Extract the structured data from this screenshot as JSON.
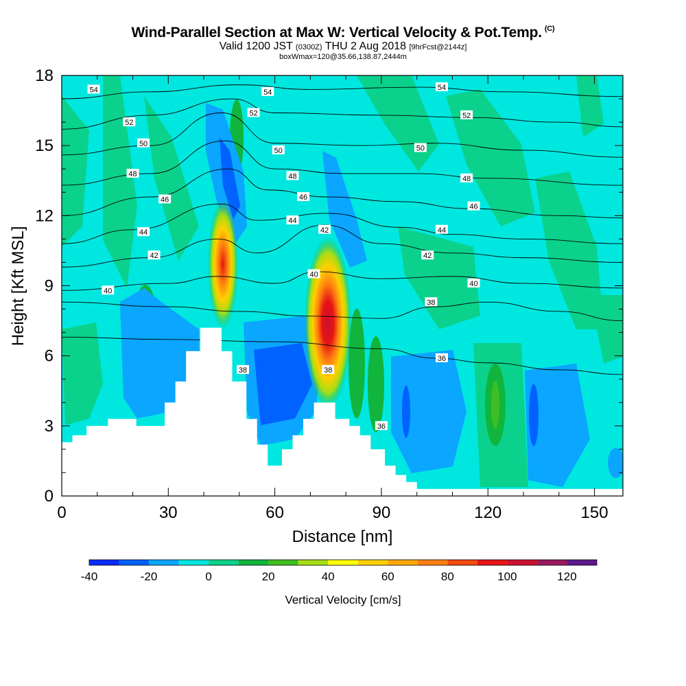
{
  "chart_data": {
    "type": "heatmap",
    "title": "Wind-Parallel Section at Max W: Vertical Velocity & Pot.Temp.",
    "title_mark": "(C)",
    "subtitle_main": "Valid 1200 JST",
    "subtitle_utc": "(0300Z)",
    "subtitle_date": "THU 2 Aug 2018",
    "subtitle_fcst": "[9hrFcst@2144z]",
    "subtitle2": "boxWmax=120@35.66,138.87,2444m",
    "xlabel": "Distance [nm]",
    "ylabel": "Height [Kft MSL]",
    "xlim": [
      0,
      158
    ],
    "ylim": [
      0,
      18
    ],
    "x_ticks": [
      "0",
      "30",
      "60",
      "90",
      "120",
      "150"
    ],
    "y_ticks": [
      "0",
      "3",
      "6",
      "9",
      "12",
      "15",
      "18"
    ],
    "colorbar": {
      "label": "Vertical Velocity [cm/s]",
      "range": [
        -40,
        130
      ],
      "step": 10,
      "tick_labels": [
        "-40",
        "-20",
        "0",
        "20",
        "40",
        "60",
        "80",
        "100",
        "120"
      ],
      "colors": [
        "#0a2cff",
        "#0062ff",
        "#0aa6ff",
        "#00e7e0",
        "#0ad28c",
        "#11b53e",
        "#3fbf1f",
        "#a6dd14",
        "#ffff00",
        "#ffd000",
        "#ffa800",
        "#ff7f10",
        "#f54a10",
        "#e61414",
        "#cc1030",
        "#991a5e",
        "#5e1a8c"
      ]
    },
    "terrain": [
      [
        0,
        2.3
      ],
      [
        3,
        2.6
      ],
      [
        7,
        3.0
      ],
      [
        13,
        3.3
      ],
      [
        21,
        3.0
      ],
      [
        29,
        4.0
      ],
      [
        32,
        4.9
      ],
      [
        35,
        6.2
      ],
      [
        39,
        7.2
      ],
      [
        45,
        6.2
      ],
      [
        48,
        4.9
      ],
      [
        52,
        3.3
      ],
      [
        55,
        2.2
      ],
      [
        58,
        1.3
      ],
      [
        62,
        2.0
      ],
      [
        65,
        2.6
      ],
      [
        68,
        3.3
      ],
      [
        71,
        4.0
      ],
      [
        77,
        3.3
      ],
      [
        81,
        3.0
      ],
      [
        84,
        2.6
      ],
      [
        87,
        2.0
      ],
      [
        91,
        1.3
      ],
      [
        94,
        0.9
      ],
      [
        97,
        0.6
      ],
      [
        100,
        0.3
      ],
      [
        158,
        0.3
      ]
    ],
    "theta_contours": [
      {
        "level": 36,
        "label": "36",
        "points": [
          [
            0,
            6.8
          ],
          [
            30,
            6.7
          ],
          [
            60,
            6.6
          ],
          [
            90,
            6.3
          ],
          [
            105,
            5.9
          ],
          [
            120,
            5.7
          ],
          [
            140,
            5.4
          ],
          [
            158,
            5.2
          ]
        ]
      },
      {
        "level": 38,
        "label": "38",
        "points": [
          [
            0,
            8.3
          ],
          [
            30,
            8.1
          ],
          [
            50,
            7.9
          ],
          [
            70,
            7.7
          ],
          [
            90,
            7.6
          ],
          [
            105,
            8.1
          ],
          [
            120,
            8.3
          ],
          [
            140,
            7.9
          ],
          [
            158,
            7.5
          ]
        ]
      },
      {
        "level": 40,
        "label": "40",
        "points": [
          [
            0,
            8.8
          ],
          [
            30,
            9.1
          ],
          [
            44,
            9.4
          ],
          [
            60,
            9.1
          ],
          [
            72,
            9.6
          ],
          [
            90,
            9.3
          ],
          [
            110,
            9.4
          ],
          [
            130,
            9.1
          ],
          [
            158,
            8.9
          ]
        ]
      },
      {
        "level": 42,
        "label": "42",
        "points": [
          [
            0,
            9.8
          ],
          [
            25,
            10.2
          ],
          [
            44,
            11.0
          ],
          [
            55,
            10.4
          ],
          [
            74,
            11.6
          ],
          [
            90,
            10.8
          ],
          [
            110,
            10.4
          ],
          [
            130,
            10.2
          ],
          [
            158,
            10.0
          ]
        ]
      },
      {
        "level": 44,
        "label": "44",
        "points": [
          [
            0,
            10.8
          ],
          [
            20,
            11.4
          ],
          [
            45,
            12.5
          ],
          [
            55,
            11.8
          ],
          [
            75,
            12.1
          ],
          [
            95,
            11.5
          ],
          [
            110,
            11.2
          ],
          [
            130,
            11.0
          ],
          [
            158,
            10.8
          ]
        ]
      },
      {
        "level": 46,
        "label": "46",
        "points": [
          [
            0,
            12.0
          ],
          [
            25,
            12.8
          ],
          [
            47,
            14.0
          ],
          [
            58,
            13.1
          ],
          [
            75,
            12.8
          ],
          [
            95,
            12.6
          ],
          [
            115,
            12.3
          ],
          [
            140,
            12.0
          ],
          [
            158,
            11.9
          ]
        ]
      },
      {
        "level": 48,
        "label": "48",
        "points": [
          [
            0,
            13.3
          ],
          [
            25,
            13.8
          ],
          [
            46,
            15.2
          ],
          [
            60,
            14.0
          ],
          [
            80,
            13.8
          ],
          [
            100,
            13.8
          ],
          [
            120,
            13.6
          ],
          [
            158,
            13.3
          ]
        ]
      },
      {
        "level": 50,
        "label": "50",
        "points": [
          [
            0,
            14.6
          ],
          [
            25,
            15.0
          ],
          [
            45,
            16.4
          ],
          [
            60,
            15.1
          ],
          [
            85,
            15.0
          ],
          [
            105,
            15.1
          ],
          [
            130,
            14.8
          ],
          [
            158,
            14.5
          ]
        ]
      },
      {
        "level": 52,
        "label": "52",
        "points": [
          [
            0,
            15.7
          ],
          [
            25,
            16.3
          ],
          [
            48,
            17.0
          ],
          [
            60,
            16.4
          ],
          [
            90,
            16.3
          ],
          [
            115,
            16.2
          ],
          [
            140,
            16.0
          ],
          [
            158,
            15.8
          ]
        ]
      },
      {
        "level": 54,
        "label": "54",
        "points": [
          [
            0,
            17.0
          ],
          [
            25,
            17.3
          ],
          [
            50,
            17.6
          ],
          [
            70,
            17.4
          ],
          [
            100,
            17.5
          ],
          [
            125,
            17.3
          ],
          [
            158,
            17.1
          ]
        ]
      }
    ],
    "contour_labels": [
      {
        "text": "54",
        "x": 9,
        "y": 17.4
      },
      {
        "text": "54",
        "x": 58,
        "y": 17.3
      },
      {
        "text": "54",
        "x": 107,
        "y": 17.5
      },
      {
        "text": "52",
        "x": 19,
        "y": 16.0
      },
      {
        "text": "52",
        "x": 54,
        "y": 16.4
      },
      {
        "text": "52",
        "x": 114,
        "y": 16.3
      },
      {
        "text": "50",
        "x": 23,
        "y": 15.1
      },
      {
        "text": "50",
        "x": 61,
        "y": 14.8
      },
      {
        "text": "50",
        "x": 101,
        "y": 14.9
      },
      {
        "text": "48",
        "x": 20,
        "y": 13.8
      },
      {
        "text": "48",
        "x": 65,
        "y": 13.7
      },
      {
        "text": "48",
        "x": 114,
        "y": 13.6
      },
      {
        "text": "46",
        "x": 29,
        "y": 12.7
      },
      {
        "text": "46",
        "x": 68,
        "y": 12.8
      },
      {
        "text": "46",
        "x": 116,
        "y": 12.4
      },
      {
        "text": "44",
        "x": 23,
        "y": 11.3
      },
      {
        "text": "44",
        "x": 65,
        "y": 11.8
      },
      {
        "text": "44",
        "x": 107,
        "y": 11.4
      },
      {
        "text": "42",
        "x": 26,
        "y": 10.3
      },
      {
        "text": "42",
        "x": 74,
        "y": 11.4
      },
      {
        "text": "42",
        "x": 103,
        "y": 10.3
      },
      {
        "text": "40",
        "x": 13,
        "y": 8.8
      },
      {
        "text": "40",
        "x": 71,
        "y": 9.5
      },
      {
        "text": "40",
        "x": 116,
        "y": 9.1
      },
      {
        "text": "38",
        "x": 51,
        "y": 5.4
      },
      {
        "text": "38",
        "x": 75,
        "y": 5.4
      },
      {
        "text": "38",
        "x": 104,
        "y": 8.3
      },
      {
        "text": "36",
        "x": 90,
        "y": 3.0
      },
      {
        "text": "36",
        "x": 107,
        "y": 5.9
      }
    ]
  }
}
